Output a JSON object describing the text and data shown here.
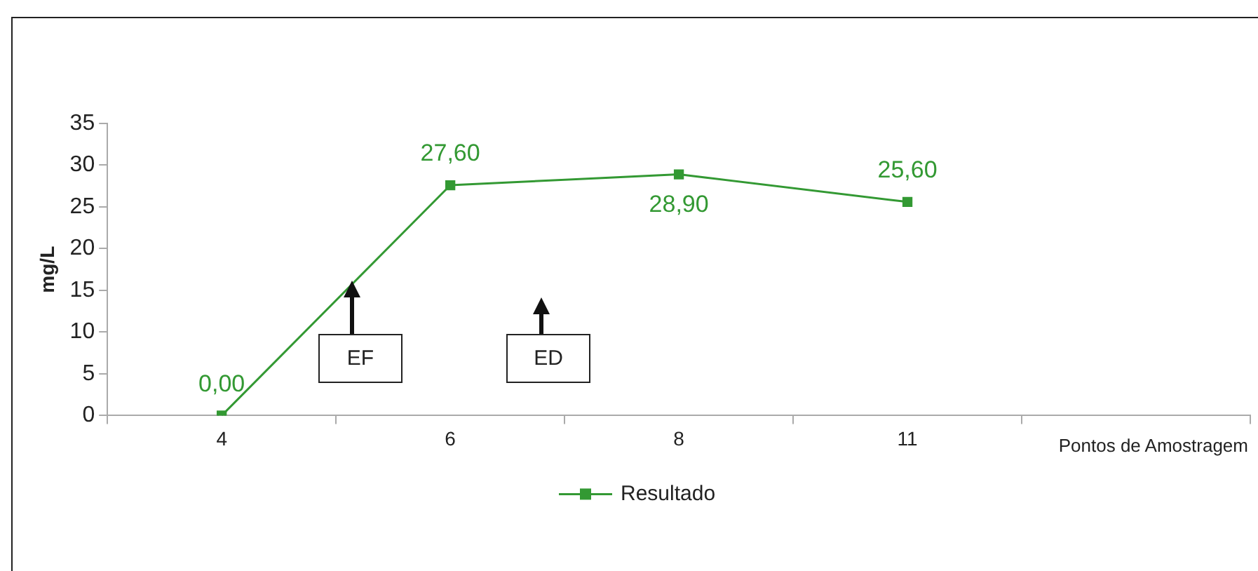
{
  "chart_data": {
    "type": "line",
    "xlabel": "Pontos de Amostragem",
    "ylabel": "mg/L",
    "categories": [
      "4",
      "6",
      "8",
      "11",
      null
    ],
    "series": [
      {
        "name": "Resultado",
        "color": "#339933",
        "values": [
          0,
          27.6,
          28.9,
          25.6,
          null
        ],
        "value_labels": [
          "0,00",
          "27,60",
          "28,90",
          "25,60",
          null
        ]
      }
    ],
    "ylim": [
      0,
      35
    ],
    "yticks": [
      0,
      5,
      10,
      15,
      20,
      25,
      30,
      35
    ],
    "marker": "square",
    "legend": "bottom",
    "annotations": [
      "EF",
      "ED"
    ]
  }
}
